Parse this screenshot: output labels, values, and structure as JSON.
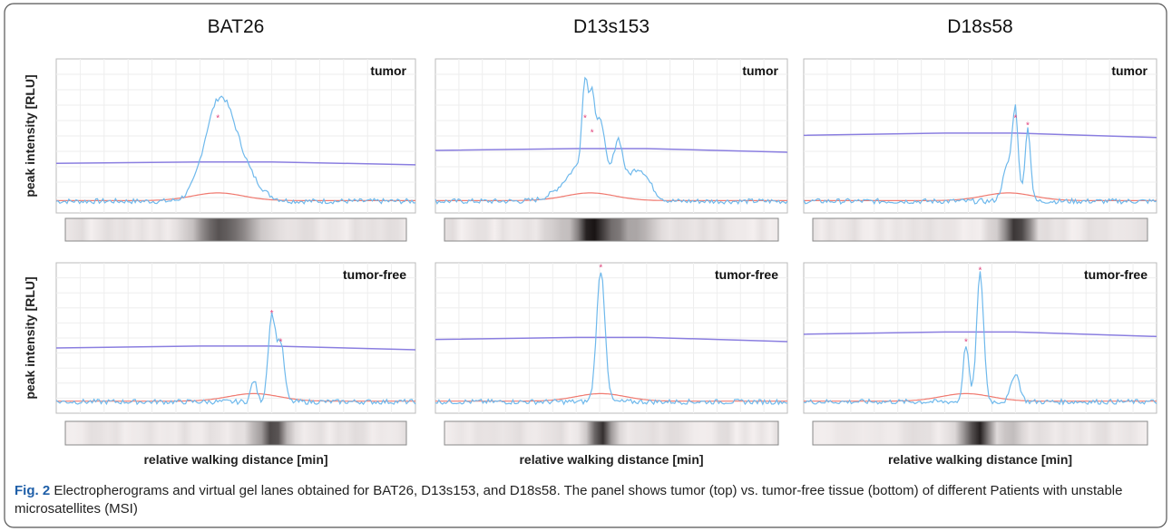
{
  "columns": [
    {
      "title": "BAT26"
    },
    {
      "title": "D13s153"
    },
    {
      "title": "D18s58"
    }
  ],
  "rows": [
    {
      "label": "tumor"
    },
    {
      "label": "tumor-free"
    }
  ],
  "y_label": "peak intensity [RLU]",
  "x_label": "relative walking distance [min]",
  "caption": {
    "label": "Fig. 2",
    "text": "Electropherograms and virtual gel lanes obtained for BAT26, D13s153, and D18s58. The panel shows tumor (top) vs. tumor-free tissue (bottom) of different Patients with unstable microsatellites (MSI)"
  }
}
